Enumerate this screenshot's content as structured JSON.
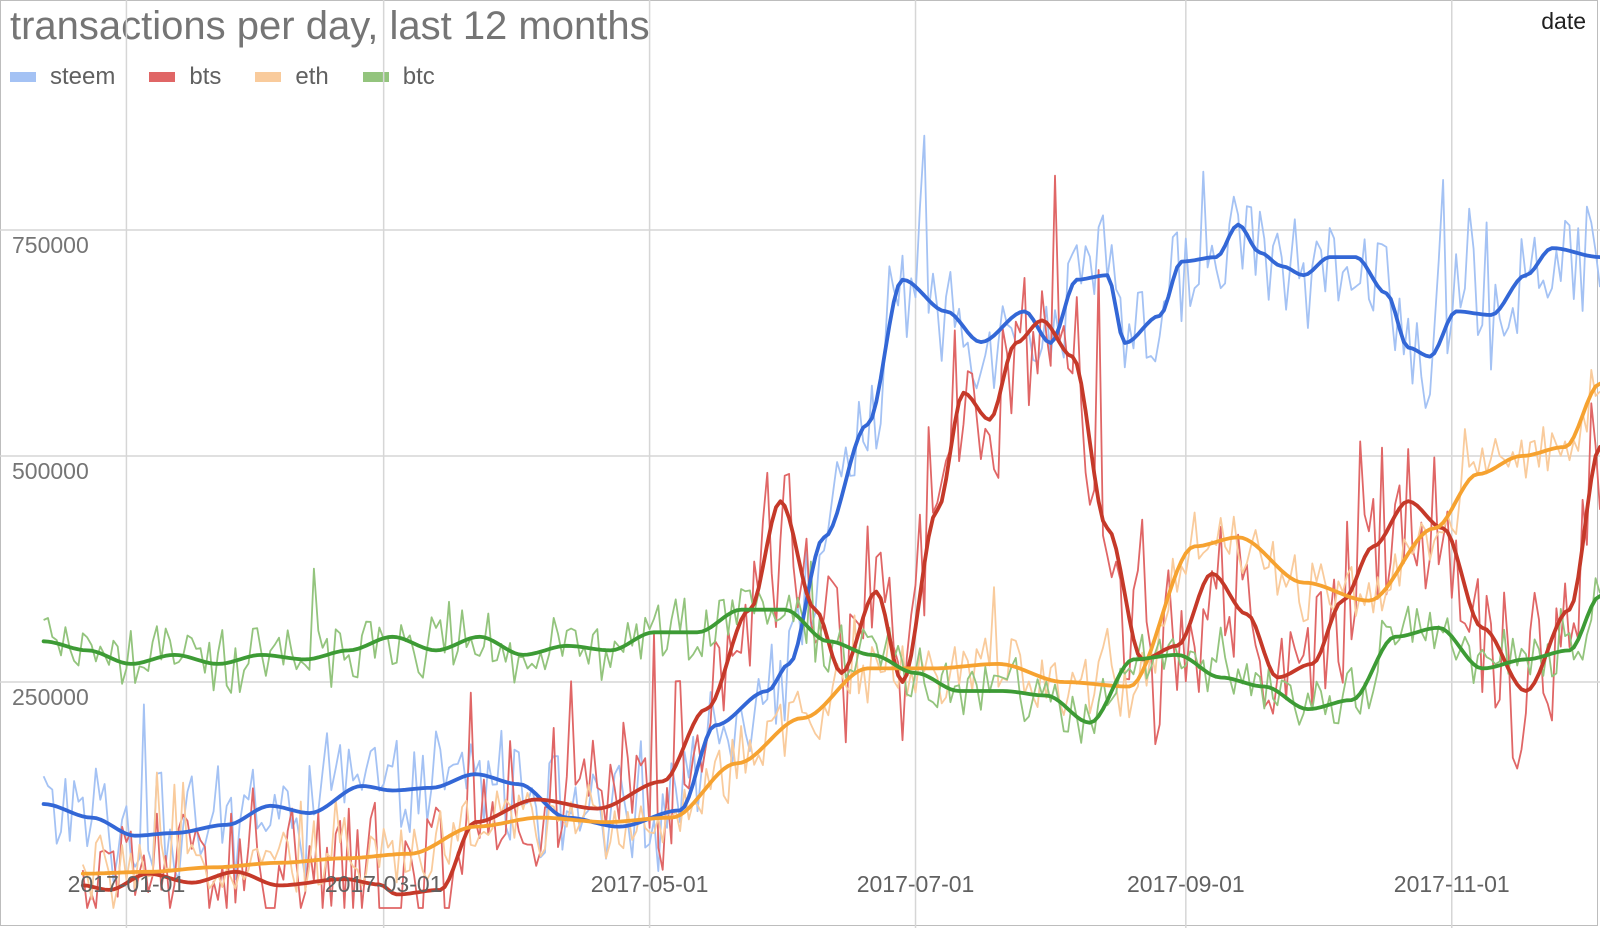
{
  "chart_data": {
    "type": "line",
    "title": "transactions per day, last 12 months",
    "corner_label": "date",
    "xlabel": "",
    "ylabel": "",
    "legend_position": "top-left",
    "xlim": [
      "2016-12-03",
      "2017-12-05"
    ],
    "ylim": [
      0,
      1000000
    ],
    "x_ticks": [
      "2017-01-01",
      "2017-03-01",
      "2017-05-01",
      "2017-07-01",
      "2017-09-01",
      "2017-11-01"
    ],
    "y_ticks": [
      250000,
      500000,
      750000
    ],
    "y_tick_labels": [
      "250000",
      "500000",
      "750000"
    ],
    "grid": true,
    "noise_amplitude": {
      "steem": 55000,
      "bts": 80000,
      "eth": 35000,
      "btc": 30000
    },
    "series": [
      {
        "name": "steem",
        "color": "#3367d6",
        "light_color": "#a4c2f4",
        "smoothed": [
          [
            "2016-12-13",
            115000
          ],
          [
            "2016-12-24",
            100000
          ],
          [
            "2017-01-03",
            80000
          ],
          [
            "2017-01-12",
            83000
          ],
          [
            "2017-01-24",
            92000
          ],
          [
            "2017-02-03",
            113000
          ],
          [
            "2017-02-12",
            105000
          ],
          [
            "2017-02-24",
            135000
          ],
          [
            "2017-03-03",
            130000
          ],
          [
            "2017-03-12",
            133000
          ],
          [
            "2017-03-22",
            148000
          ],
          [
            "2017-04-01",
            137000
          ],
          [
            "2017-04-12",
            100000
          ],
          [
            "2017-04-24",
            90000
          ],
          [
            "2017-05-08",
            108000
          ],
          [
            "2017-05-16",
            202000
          ],
          [
            "2017-05-28",
            240000
          ],
          [
            "2017-06-02",
            270000
          ],
          [
            "2017-06-10",
            410000
          ],
          [
            "2017-06-20",
            535000
          ],
          [
            "2017-06-28",
            695000
          ],
          [
            "2017-07-08",
            660000
          ],
          [
            "2017-07-16",
            626000
          ],
          [
            "2017-07-26",
            660000
          ],
          [
            "2017-08-01",
            625000
          ],
          [
            "2017-08-07",
            695000
          ],
          [
            "2017-08-14",
            700000
          ],
          [
            "2017-08-18",
            625000
          ],
          [
            "2017-08-26",
            655000
          ],
          [
            "2017-08-31",
            715000
          ],
          [
            "2017-09-08",
            720000
          ],
          [
            "2017-09-13",
            756000
          ],
          [
            "2017-09-18",
            725000
          ],
          [
            "2017-09-23",
            710000
          ],
          [
            "2017-09-28",
            700000
          ],
          [
            "2017-10-04",
            720000
          ],
          [
            "2017-10-10",
            720000
          ],
          [
            "2017-10-17",
            680000
          ],
          [
            "2017-10-22",
            620000
          ],
          [
            "2017-10-27",
            610000
          ],
          [
            "2017-11-02",
            660000
          ],
          [
            "2017-11-10",
            656000
          ],
          [
            "2017-11-18",
            700000
          ],
          [
            "2017-11-24",
            730000
          ],
          [
            "2017-12-05",
            720000
          ]
        ]
      },
      {
        "name": "bts",
        "color": "#c53929",
        "light_color": "#e06666",
        "smoothed": [
          [
            "2016-12-22",
            25000
          ],
          [
            "2016-12-28",
            20000
          ],
          [
            "2017-01-06",
            38000
          ],
          [
            "2017-01-16",
            28000
          ],
          [
            "2017-01-26",
            40000
          ],
          [
            "2017-02-05",
            25000
          ],
          [
            "2017-02-20",
            32000
          ],
          [
            "2017-02-28",
            26000
          ],
          [
            "2017-03-04",
            15000
          ],
          [
            "2017-03-14",
            20000
          ],
          [
            "2017-03-22",
            95000
          ],
          [
            "2017-04-05",
            120000
          ],
          [
            "2017-04-19",
            110000
          ],
          [
            "2017-05-04",
            140000
          ],
          [
            "2017-05-14",
            220000
          ],
          [
            "2017-05-24",
            330000
          ],
          [
            "2017-05-31",
            450000
          ],
          [
            "2017-06-08",
            330000
          ],
          [
            "2017-06-14",
            260000
          ],
          [
            "2017-06-22",
            350000
          ],
          [
            "2017-06-28",
            250000
          ],
          [
            "2017-07-06",
            440000
          ],
          [
            "2017-07-12",
            570000
          ],
          [
            "2017-07-18",
            540000
          ],
          [
            "2017-07-24",
            625000
          ],
          [
            "2017-07-30",
            650000
          ],
          [
            "2017-08-06",
            610000
          ],
          [
            "2017-08-14",
            420000
          ],
          [
            "2017-08-22",
            275000
          ],
          [
            "2017-08-30",
            290000
          ],
          [
            "2017-09-07",
            370000
          ],
          [
            "2017-09-15",
            325000
          ],
          [
            "2017-09-22",
            255000
          ],
          [
            "2017-09-30",
            270000
          ],
          [
            "2017-10-07",
            340000
          ],
          [
            "2017-10-14",
            400000
          ],
          [
            "2017-10-22",
            450000
          ],
          [
            "2017-10-30",
            420000
          ],
          [
            "2017-11-08",
            310000
          ],
          [
            "2017-11-18",
            240000
          ],
          [
            "2017-11-28",
            330000
          ],
          [
            "2017-12-05",
            510000
          ]
        ]
      },
      {
        "name": "eth",
        "color": "#f6a230",
        "light_color": "#f9cb9c",
        "smoothed": [
          [
            "2016-12-22",
            38000
          ],
          [
            "2017-01-06",
            40000
          ],
          [
            "2017-01-21",
            45000
          ],
          [
            "2017-02-05",
            50000
          ],
          [
            "2017-02-20",
            55000
          ],
          [
            "2017-03-07",
            60000
          ],
          [
            "2017-03-22",
            90000
          ],
          [
            "2017-04-06",
            100000
          ],
          [
            "2017-04-21",
            95000
          ],
          [
            "2017-05-06",
            100000
          ],
          [
            "2017-05-21",
            160000
          ],
          [
            "2017-06-05",
            210000
          ],
          [
            "2017-06-20",
            265000
          ],
          [
            "2017-07-05",
            265000
          ],
          [
            "2017-07-20",
            270000
          ],
          [
            "2017-08-04",
            250000
          ],
          [
            "2017-08-19",
            245000
          ],
          [
            "2017-09-03",
            400000
          ],
          [
            "2017-09-13",
            410000
          ],
          [
            "2017-09-28",
            360000
          ],
          [
            "2017-10-13",
            340000
          ],
          [
            "2017-10-28",
            420000
          ],
          [
            "2017-11-07",
            480000
          ],
          [
            "2017-11-17",
            500000
          ],
          [
            "2017-11-27",
            510000
          ],
          [
            "2017-12-05",
            580000
          ]
        ]
      },
      {
        "name": "btc",
        "color": "#3d9b35",
        "light_color": "#93c47d",
        "smoothed": [
          [
            "2016-12-13",
            295000
          ],
          [
            "2016-12-23",
            285000
          ],
          [
            "2017-01-02",
            270000
          ],
          [
            "2017-01-12",
            280000
          ],
          [
            "2017-01-22",
            270000
          ],
          [
            "2017-02-01",
            280000
          ],
          [
            "2017-02-11",
            275000
          ],
          [
            "2017-02-21",
            285000
          ],
          [
            "2017-03-03",
            300000
          ],
          [
            "2017-03-13",
            285000
          ],
          [
            "2017-03-23",
            300000
          ],
          [
            "2017-04-02",
            280000
          ],
          [
            "2017-04-12",
            290000
          ],
          [
            "2017-04-22",
            285000
          ],
          [
            "2017-05-02",
            305000
          ],
          [
            "2017-05-12",
            305000
          ],
          [
            "2017-05-22",
            330000
          ],
          [
            "2017-06-01",
            330000
          ],
          [
            "2017-06-11",
            295000
          ],
          [
            "2017-06-21",
            280000
          ],
          [
            "2017-07-01",
            260000
          ],
          [
            "2017-07-11",
            240000
          ],
          [
            "2017-07-21",
            240000
          ],
          [
            "2017-07-31",
            235000
          ],
          [
            "2017-08-10",
            205000
          ],
          [
            "2017-08-20",
            275000
          ],
          [
            "2017-08-30",
            280000
          ],
          [
            "2017-09-09",
            255000
          ],
          [
            "2017-09-19",
            245000
          ],
          [
            "2017-09-29",
            220000
          ],
          [
            "2017-10-09",
            230000
          ],
          [
            "2017-10-19",
            300000
          ],
          [
            "2017-10-29",
            310000
          ],
          [
            "2017-11-08",
            265000
          ],
          [
            "2017-11-18",
            275000
          ],
          [
            "2017-11-28",
            285000
          ],
          [
            "2017-12-05",
            345000
          ]
        ]
      }
    ]
  }
}
